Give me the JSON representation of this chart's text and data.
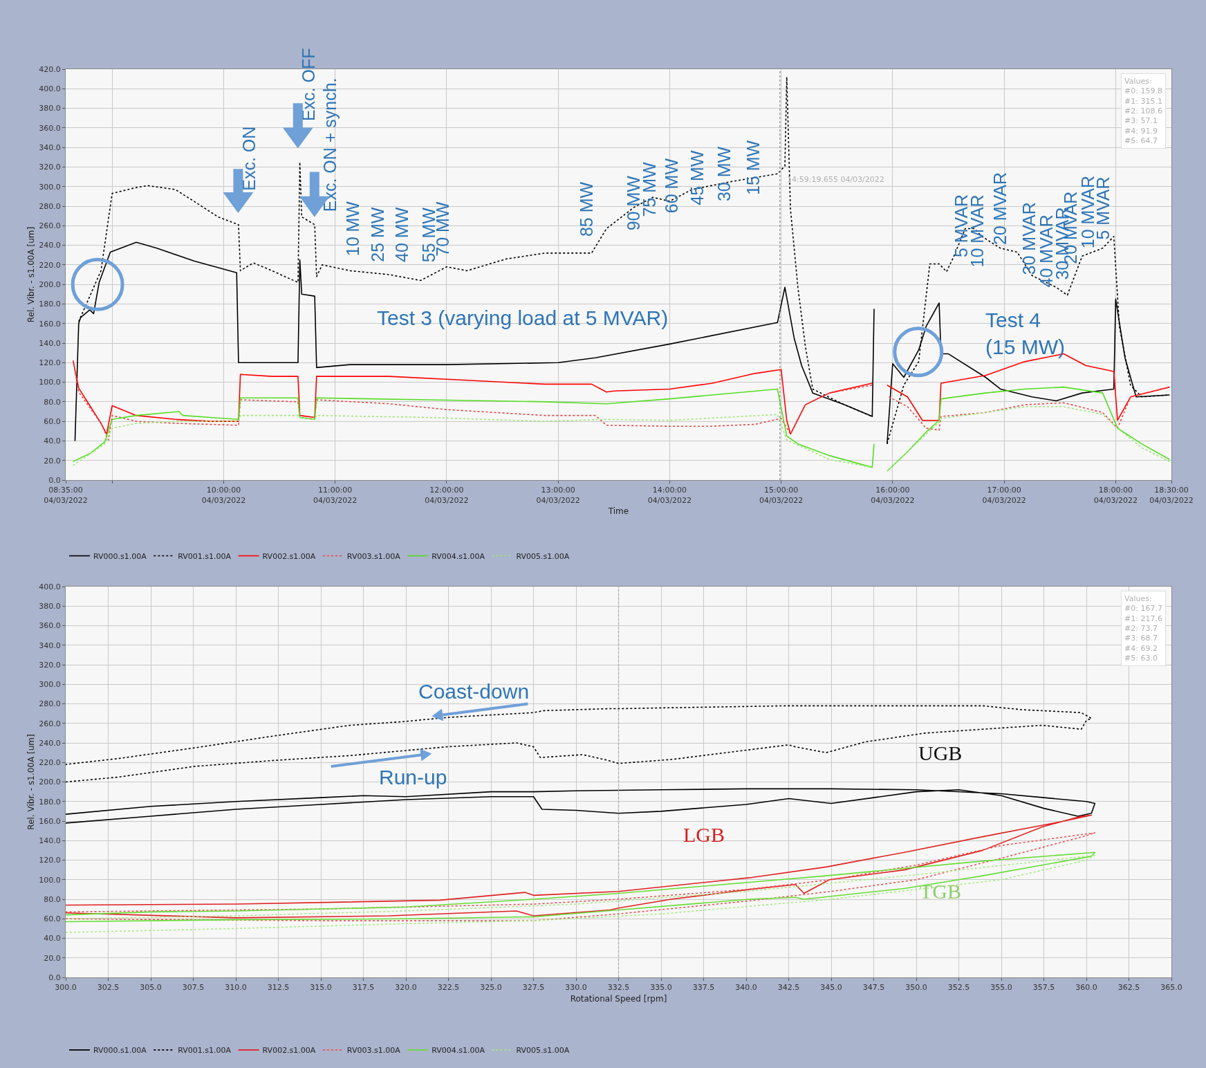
{
  "chart_data": [
    {
      "type": "line",
      "xlabel": "Time",
      "ylabel": "Rel. Vibr. - s1.00A [um]",
      "xlim": [
        "2022-03-04T08:35",
        "2022-03-04T18:30"
      ],
      "xticks": [
        {
          "value": "2022-03-04T08:35",
          "label": "08:35:00\n04/03/2022"
        },
        {
          "value": "2022-03-04T09:00",
          "label": null
        },
        {
          "value": "2022-03-04T10:00",
          "label": "10:00:00\n04/03/2022"
        },
        {
          "value": "2022-03-04T11:00",
          "label": "11:00:00\n04/03/2022"
        },
        {
          "value": "2022-03-04T12:00",
          "label": "12:00:00\n04/03/2022"
        },
        {
          "value": "2022-03-04T13:00",
          "label": "13:00:00\n04/03/2022"
        },
        {
          "value": "2022-03-04T14:00",
          "label": "14:00:00\n04/03/2022"
        },
        {
          "value": "2022-03-04T15:00",
          "label": "15:00:00\n04/03/2022"
        },
        {
          "value": "2022-03-04T16:00",
          "label": "16:00:00\n04/03/2022"
        },
        {
          "value": "2022-03-04T17:00",
          "label": "17:00:00\n04/03/2022"
        },
        {
          "value": "2022-03-04T18:00",
          "label": "18:00:00\n04/03/2022"
        },
        {
          "value": "2022-03-04T18:30",
          "label": "18:30:00\n04/03/2022"
        }
      ],
      "ylim": [
        0,
        420
      ],
      "yticks": [
        {
          "value": 0,
          "label": "0.0"
        },
        {
          "value": 20,
          "label": "20.0"
        },
        {
          "value": 40,
          "label": "40.0"
        },
        {
          "value": 60,
          "label": "60.0"
        },
        {
          "value": 80,
          "label": "80.0"
        },
        {
          "value": 100,
          "label": "100.0"
        },
        {
          "value": 120,
          "label": "120.0"
        },
        {
          "value": 140,
          "label": "140.0"
        },
        {
          "value": 160,
          "label": "160.0"
        },
        {
          "value": 180,
          "label": "180.0"
        },
        {
          "value": 200,
          "label": "200.0"
        },
        {
          "value": 220,
          "label": "220.0"
        },
        {
          "value": 240,
          "label": "240.0"
        },
        {
          "value": 260,
          "label": "260.0"
        },
        {
          "value": 280,
          "label": "280.0"
        },
        {
          "value": 300,
          "label": "300.0"
        },
        {
          "value": 320,
          "label": "320.0"
        },
        {
          "value": 340,
          "label": "340.0"
        },
        {
          "value": 360,
          "label": "360.0"
        },
        {
          "value": 380,
          "label": "380.0"
        },
        {
          "value": 400,
          "label": "400.0"
        },
        {
          "value": 420,
          "label": "420.0"
        }
      ],
      "grid": true,
      "legend": "bottom",
      "ref_lines": [
        {
          "axis": "x",
          "value": "2022-03-04T14:59:19",
          "label": "14:59:19.655 04/03/2022",
          "color": "#888888",
          "line_style": "dotted"
        }
      ],
      "series": [
        {
          "name": "RV000.s1.00A",
          "color": "#000000",
          "line_style": "solid",
          "x": [
            "2022-03-04T08:40",
            "2022-03-04T08:42",
            "2022-03-04T08:43",
            "2022-03-04T08:48",
            "2022-03-04T08:50",
            "2022-03-04T08:53",
            "2022-03-04T08:59",
            "2022-03-04T09:13",
            "2022-03-04T09:24",
            "2022-03-04T09:44",
            "2022-03-04T10:07",
            "2022-03-04T10:08",
            "2022-03-04T10:40",
            "2022-03-04T10:41",
            "2022-03-04T10:42",
            "2022-03-04T10:49",
            "2022-03-04T10:50",
            "2022-03-04T11:08",
            "2022-03-04T12:00",
            "2022-03-04T13:00",
            "2022-03-04T13:20",
            "2022-03-04T14:00",
            "2022-03-04T14:58",
            "2022-03-04T15:02",
            "2022-03-04T15:07",
            "2022-03-04T15:11",
            "2022-03-04T15:17",
            "2022-03-04T15:34",
            "2022-03-04T15:49",
            "2022-03-04T15:50",
            "2022-03-04T15:53",
            "2022-03-04T15:57",
            "2022-03-04T16:00",
            "2022-03-04T16:06",
            "2022-03-04T16:14",
            "2022-03-04T16:18",
            "2022-03-04T16:25",
            "2022-03-04T16:26",
            "2022-03-04T16:30",
            "2022-03-04T16:50",
            "2022-03-04T16:58",
            "2022-03-04T17:15",
            "2022-03-04T17:28",
            "2022-03-04T17:42",
            "2022-03-04T17:59",
            "2022-03-04T18:00",
            "2022-03-04T18:05",
            "2022-03-04T18:11",
            "2022-03-04T18:29"
          ],
          "values": [
            40,
            160,
            166,
            174,
            170,
            202,
            233,
            243,
            237,
            224,
            212,
            120,
            120,
            225,
            190,
            188,
            115,
            118,
            118,
            120,
            125,
            139,
            161,
            197,
            145,
            117,
            89,
            77,
            65,
            175,
            null,
            37,
            119,
            105,
            133,
            157,
            181,
            129,
            129,
            105,
            93,
            85,
            81,
            89,
            93,
            185,
            125,
            85,
            87
          ]
        },
        {
          "name": "RV001.s1.00A",
          "color": "#000000",
          "line_style": "dotted",
          "x": [
            "2022-03-04T08:42",
            "2022-03-04T08:54",
            "2022-03-04T09:00",
            "2022-03-04T09:13",
            "2022-03-04T09:19",
            "2022-03-04T09:34",
            "2022-03-04T09:44",
            "2022-03-04T09:57",
            "2022-03-04T10:08",
            "2022-03-04T10:09",
            "2022-03-04T10:16",
            "2022-03-04T10:26",
            "2022-03-04T10:40",
            "2022-03-04T10:41",
            "2022-03-04T10:42",
            "2022-03-04T10:49",
            "2022-03-04T10:50",
            "2022-03-04T10:53",
            "2022-03-04T11:08",
            "2022-03-04T11:29",
            "2022-03-04T11:46",
            "2022-03-04T12:00",
            "2022-03-04T12:11",
            "2022-03-04T12:32",
            "2022-03-04T12:53",
            "2022-03-04T13:18",
            "2022-03-04T13:26",
            "2022-03-04T13:41",
            "2022-03-04T13:51",
            "2022-03-04T14:00",
            "2022-03-04T14:12",
            "2022-03-04T14:33",
            "2022-03-04T14:58",
            "2022-03-04T15:02",
            "2022-03-04T15:03",
            "2022-03-04T15:05",
            "2022-03-04T15:09",
            "2022-03-04T15:13",
            "2022-03-04T15:17",
            "2022-03-04T15:34",
            "2022-03-04T15:49",
            "2022-03-04T15:53",
            "2022-03-04T15:57",
            "2022-03-04T16:06",
            "2022-03-04T16:14",
            "2022-03-04T16:20",
            "2022-03-04T16:25",
            "2022-03-04T16:29",
            "2022-03-04T16:33",
            "2022-03-04T16:39",
            "2022-03-04T16:44",
            "2022-03-04T16:48",
            "2022-03-04T16:58",
            "2022-03-04T17:07",
            "2022-03-04T17:15",
            "2022-03-04T17:28",
            "2022-03-04T17:34",
            "2022-03-04T17:42",
            "2022-03-04T17:53",
            "2022-03-04T17:59",
            "2022-03-04T18:02",
            "2022-03-04T18:08",
            "2022-03-04T18:14",
            "2022-03-04T18:29"
          ],
          "values": [
            162,
            214,
            293,
            299,
            301,
            297,
            285,
            269,
            261,
            214,
            222,
            214,
            202,
            325,
            269,
            261,
            208,
            220,
            214,
            210,
            204,
            218,
            214,
            226,
            232,
            232,
            257,
            279,
            289,
            285,
            297,
            305,
            313,
            321,
            412,
            277,
            197,
            137,
            93,
            77,
            65,
            null,
            37,
            97,
            121,
            221,
            221,
            213,
            229,
            257,
            257,
            249,
            237,
            233,
            209,
            197,
            189,
            229,
            237,
            249,
            157,
            97,
            85,
            87
          ]
        },
        {
          "name": "RV002.s1.00A",
          "color": "#ff0000",
          "line_style": "solid",
          "x": [
            "2022-03-04T08:39",
            "2022-03-04T08:42",
            "2022-03-04T08:48",
            "2022-03-04T08:54",
            "2022-03-04T08:57",
            "2022-03-04T09:00",
            "2022-03-04T09:13",
            "2022-03-04T09:34",
            "2022-03-04T09:53",
            "2022-03-04T10:08",
            "2022-03-04T10:09",
            "2022-03-04T10:26",
            "2022-03-04T10:40",
            "2022-03-04T10:41",
            "2022-03-04T10:49",
            "2022-03-04T10:50",
            "2022-03-04T11:29",
            "2022-03-04T12:11",
            "2022-03-04T12:53",
            "2022-03-04T13:18",
            "2022-03-04T13:26",
            "2022-03-04T13:30",
            "2022-03-04T14:00",
            "2022-03-04T14:23",
            "2022-03-04T14:46",
            "2022-03-04T15:00",
            "2022-03-04T15:03",
            "2022-03-04T15:05",
            "2022-03-04T15:13",
            "2022-03-04T15:26",
            "2022-03-04T15:49",
            "2022-03-04T15:53",
            "2022-03-04T15:57",
            "2022-03-04T16:08",
            "2022-03-04T16:16",
            "2022-03-04T16:25",
            "2022-03-04T16:26",
            "2022-03-04T16:50",
            "2022-03-04T17:11",
            "2022-03-04T17:32",
            "2022-03-04T17:44",
            "2022-03-04T17:59",
            "2022-03-04T18:01",
            "2022-03-04T18:08",
            "2022-03-04T18:29"
          ],
          "values": [
            122,
            94,
            76,
            58,
            47,
            76,
            66,
            62,
            60,
            60,
            108,
            106,
            106,
            66,
            64,
            106,
            106,
            102,
            98,
            98,
            90,
            91,
            93,
            99,
            109,
            113,
            61,
            47,
            77,
            89,
            99,
            null,
            97,
            85,
            61,
            61,
            99,
            107,
            121,
            129,
            117,
            111,
            61,
            85,
            95
          ]
        },
        {
          "name": "RV003.s1.00A",
          "color": "#f04040",
          "line_style": "dotted",
          "x": [
            "2022-03-04T08:39",
            "2022-03-04T08:42",
            "2022-03-04T08:54",
            "2022-03-04T08:58",
            "2022-03-04T09:00",
            "2022-03-04T09:13",
            "2022-03-04T09:34",
            "2022-03-04T10:08",
            "2022-03-04T10:09",
            "2022-03-04T10:40",
            "2022-03-04T10:41",
            "2022-03-04T10:49",
            "2022-03-04T10:50",
            "2022-03-04T11:29",
            "2022-03-04T12:00",
            "2022-03-04T12:53",
            "2022-03-04T13:20",
            "2022-03-04T13:26",
            "2022-03-04T14:00",
            "2022-03-04T14:23",
            "2022-03-04T14:46",
            "2022-03-04T15:00",
            "2022-03-04T15:05",
            "2022-03-04T15:13",
            "2022-03-04T15:26",
            "2022-03-04T15:49",
            "2022-03-04T15:53",
            "2022-03-04T15:58",
            "2022-03-04T16:08",
            "2022-03-04T16:18",
            "2022-03-04T16:25",
            "2022-03-04T16:26",
            "2022-03-04T16:50",
            "2022-03-04T17:11",
            "2022-03-04T17:32",
            "2022-03-04T17:53",
            "2022-03-04T18:01",
            "2022-03-04T18:08",
            "2022-03-04T18:29"
          ],
          "values": [
            122,
            90,
            58,
            41,
            66,
            60,
            58,
            56,
            82,
            80,
            64,
            62,
            82,
            78,
            72,
            66,
            66,
            56,
            55,
            55,
            57,
            63,
            47,
            77,
            89,
            97,
            null,
            85,
            75,
            53,
            51,
            65,
            69,
            77,
            79,
            69,
            53,
            85,
            95
          ]
        },
        {
          "name": "RV004.s1.00A",
          "color": "#55dd22",
          "line_style": "solid",
          "x": [
            "2022-03-04T08:39",
            "2022-03-04T08:48",
            "2022-03-04T08:56",
            "2022-03-04T09:00",
            "2022-03-04T09:13",
            "2022-03-04T09:36",
            "2022-03-04T09:38",
            "2022-03-04T09:53",
            "2022-03-04T10:08",
            "2022-03-04T10:09",
            "2022-03-04T10:40",
            "2022-03-04T10:41",
            "2022-03-04T10:49",
            "2022-03-04T10:50",
            "2022-03-04T11:50",
            "2022-03-04T12:53",
            "2022-03-04T13:26",
            "2022-03-04T14:00",
            "2022-03-04T14:58",
            "2022-03-04T15:03",
            "2022-03-04T15:09",
            "2022-03-04T15:26",
            "2022-03-04T15:49",
            "2022-03-04T15:50",
            "2022-03-04T15:53",
            "2022-03-04T15:57",
            "2022-03-04T16:08",
            "2022-03-04T16:18",
            "2022-03-04T16:25",
            "2022-03-04T16:26",
            "2022-03-04T16:50",
            "2022-03-04T17:11",
            "2022-03-04T17:32",
            "2022-03-04T17:53",
            "2022-03-04T18:01",
            "2022-03-04T18:14",
            "2022-03-04T18:29"
          ],
          "values": [
            19,
            27,
            39,
            62,
            66,
            70,
            66,
            64,
            62,
            84,
            84,
            64,
            62,
            84,
            82,
            80,
            78,
            83,
            93,
            45,
            37,
            25,
            13,
            37,
            null,
            9,
            29,
            49,
            61,
            83,
            89,
            93,
            95,
            89,
            53,
            37,
            21
          ]
        },
        {
          "name": "RV005.s1.00A",
          "color": "#99e870",
          "line_style": "dotted",
          "x": [
            "2022-03-04T08:39",
            "2022-03-04T08:56",
            "2022-03-04T09:00",
            "2022-03-04T09:13",
            "2022-03-04T09:34",
            "2022-03-04T10:08",
            "2022-03-04T10:09",
            "2022-03-04T10:40",
            "2022-03-04T10:41",
            "2022-03-04T10:49",
            "2022-03-04T10:50",
            "2022-03-04T11:50",
            "2022-03-04T12:53",
            "2022-03-04T13:26",
            "2022-03-04T14:00",
            "2022-03-04T14:58",
            "2022-03-04T15:03",
            "2022-03-04T15:26",
            "2022-03-04T15:49",
            "2022-03-04T15:53",
            "2022-03-04T15:57",
            "2022-03-04T16:18",
            "2022-03-04T16:25",
            "2022-03-04T16:26",
            "2022-03-04T16:50",
            "2022-03-04T17:11",
            "2022-03-04T17:32",
            "2022-03-04T17:53",
            "2022-03-04T18:01",
            "2022-03-04T18:14",
            "2022-03-04T18:29"
          ],
          "values": [
            15,
            37,
            53,
            58,
            60,
            60,
            66,
            66,
            64,
            62,
            66,
            64,
            60,
            62,
            61,
            67,
            41,
            21,
            13,
            null,
            9,
            47,
            59,
            63,
            69,
            75,
            75,
            67,
            53,
            33,
            19
          ]
        }
      ],
      "annotations": [
        "Exc. ON",
        "Exc. OFF",
        "Exc. ON + synch.",
        "10 MW",
        "25 MW",
        "40 MW",
        "55 MW",
        "70 MW",
        "85 MW",
        "90 MW",
        "75 MW",
        "60 MW",
        "45 MW",
        "30 MW",
        "15 MW",
        "5 MVAR",
        "10 MVAR",
        "20 MVAR",
        "30 MVAR",
        "40 MVAR",
        "30 MVAR",
        "20 MVAR",
        "10 MVAR",
        "5 MVAR",
        "Test 3 (varying load at 5 MVAR)",
        "Test 4\n(15 MW)",
        "Values:\n#0: 159.8\n#1: 315.1\n#2: 108.6\n#3: 57.1\n#4: 91.9\n#5: 64.7"
      ]
    },
    {
      "type": "line",
      "xlabel": "Rotational Speed [rpm]",
      "ylabel": "Rel. Vibr. - s1.00A [um]",
      "xlim": [
        300,
        365
      ],
      "xticks": [
        {
          "value": 300,
          "label": "300.0"
        },
        {
          "value": 302.5,
          "label": "302.5"
        },
        {
          "value": 305,
          "label": "305.0"
        },
        {
          "value": 307.5,
          "label": "307.5"
        },
        {
          "value": 310,
          "label": "310.0"
        },
        {
          "value": 312.5,
          "label": "312.5"
        },
        {
          "value": 315,
          "label": "315.0"
        },
        {
          "value": 317.5,
          "label": "317.5"
        },
        {
          "value": 320,
          "label": "320.0"
        },
        {
          "value": 322.5,
          "label": "322.5"
        },
        {
          "value": 325,
          "label": "325.0"
        },
        {
          "value": 327.5,
          "label": "327.5"
        },
        {
          "value": 330,
          "label": "330.0"
        },
        {
          "value": 332.5,
          "label": "332.5"
        },
        {
          "value": 335,
          "label": "335.0"
        },
        {
          "value": 337.5,
          "label": "337.5"
        },
        {
          "value": 340,
          "label": "340.0"
        },
        {
          "value": 342.5,
          "label": "342.5"
        },
        {
          "value": 345,
          "label": "345.0"
        },
        {
          "value": 347.5,
          "label": "347.5"
        },
        {
          "value": 350,
          "label": "350.0"
        },
        {
          "value": 352.5,
          "label": "352.5"
        },
        {
          "value": 355,
          "label": "355.0"
        },
        {
          "value": 357.5,
          "label": "357.5"
        },
        {
          "value": 360,
          "label": "360.0"
        },
        {
          "value": 362.5,
          "label": "362.5"
        },
        {
          "value": 365,
          "label": "365.0"
        }
      ],
      "ylim": [
        0,
        400
      ],
      "yticks": [
        {
          "value": 0,
          "label": "0.0"
        },
        {
          "value": 20,
          "label": "20.0"
        },
        {
          "value": 40,
          "label": "40.0"
        },
        {
          "value": 60,
          "label": "60.0"
        },
        {
          "value": 80,
          "label": "80.0"
        },
        {
          "value": 100,
          "label": "100.0"
        },
        {
          "value": 120,
          "label": "120.0"
        },
        {
          "value": 140,
          "label": "140.0"
        },
        {
          "value": 160,
          "label": "160.0"
        },
        {
          "value": 180,
          "label": "180.0"
        },
        {
          "value": 200,
          "label": "200.0"
        },
        {
          "value": 220,
          "label": "220.0"
        },
        {
          "value": 240,
          "label": "240.0"
        },
        {
          "value": 260,
          "label": "260.0"
        },
        {
          "value": 280,
          "label": "280.0"
        },
        {
          "value": 300,
          "label": "300.0"
        },
        {
          "value": 320,
          "label": "320.0"
        },
        {
          "value": 340,
          "label": "340.0"
        },
        {
          "value": 360,
          "label": "360.0"
        },
        {
          "value": 380,
          "label": "380.0"
        },
        {
          "value": 400,
          "label": "400.0"
        }
      ],
      "grid": true,
      "legend": "bottom",
      "ref_lines": [
        {
          "axis": "x",
          "value": 332.5,
          "color": "#aaaaaa",
          "line_style": "dotted"
        }
      ],
      "series": [
        {
          "name": "RV000.s1.00A",
          "color": "#000000",
          "line_style": "solid",
          "x": [
            300,
            305,
            310,
            315,
            320,
            325,
            327.5,
            328,
            330,
            332.5,
            335,
            340,
            342.5,
            345,
            347.5,
            350,
            352.5,
            355,
            357.5,
            359.5,
            360.3,
            360.5,
            360,
            357.5,
            355,
            350,
            345,
            340,
            335,
            330,
            327.5,
            325,
            320,
            317.5,
            315,
            310,
            305,
            300
          ],
          "values": [
            158,
            165,
            172,
            177,
            182,
            185,
            185,
            172,
            171,
            168,
            170,
            177,
            183,
            178,
            184,
            190,
            192,
            186,
            173,
            165,
            168,
            178,
            180,
            184,
            188,
            192,
            193,
            193,
            192,
            191,
            190,
            190,
            185,
            186,
            184,
            180,
            175,
            167
          ]
        },
        {
          "name": "RV001.s1.00A",
          "color": "#000000",
          "line_style": "dotted",
          "x": [
            300,
            303.1,
            307.6,
            312.2,
            316.7,
            322.4,
            326.5,
            327.5,
            327.9,
            330.4,
            331.9,
            332.5,
            335.6,
            340.2,
            342.5,
            342.9,
            344.7,
            347,
            350.5,
            353.9,
            357.4,
            359.7,
            360,
            360.3,
            359.7,
            356.2,
            353.9,
            349.3,
            342.5,
            335.6,
            332.5,
            331.9,
            328.1,
            327.5,
            322.4,
            320,
            316.7,
            312.2,
            307.6,
            303.1,
            300
          ],
          "values": [
            200,
            205,
            216,
            222,
            227,
            236,
            240,
            236,
            225,
            228,
            222,
            219,
            223,
            233,
            238,
            236,
            230,
            241,
            250,
            254,
            258,
            254,
            263,
            265,
            271,
            274,
            278,
            278,
            278,
            276,
            275,
            275,
            273,
            271,
            266,
            262,
            258,
            247,
            235,
            224,
            218
          ]
        },
        {
          "name": "RV002.s1.00A",
          "color": "#e02020",
          "line_style": "solid",
          "x": [
            300,
            310,
            319,
            326.5,
            327.5,
            332,
            332.5,
            335.6,
            340.2,
            342.9,
            343.4,
            344.9,
            349.3,
            353.9,
            357.4,
            359.7,
            360.3,
            358.4,
            353.9,
            349.3,
            344.7,
            340.2,
            332.5,
            327.5,
            327,
            322,
            310,
            300
          ],
          "values": [
            66,
            61,
            63,
            68,
            63,
            69,
            71,
            80,
            90,
            95,
            86,
            100,
            110,
            130,
            154,
            165,
            166,
            159,
            144,
            128,
            113,
            102,
            88,
            84,
            87,
            79,
            75,
            74
          ]
        },
        {
          "name": "RV003.s1.00A",
          "color": "#f05050",
          "line_style": "dotted",
          "x": [
            300,
            315,
            327.5,
            332.5,
            340,
            345,
            350,
            355,
            360,
            360.5,
            355,
            350,
            345,
            340,
            332.5,
            327.5,
            315,
            300
          ],
          "values": [
            60,
            58,
            58,
            65,
            78,
            88,
            100,
            122,
            145,
            148,
            135,
            115,
            100,
            90,
            80,
            75,
            70,
            67
          ]
        },
        {
          "name": "RV004.s1.00A",
          "color": "#66dd33",
          "line_style": "solid",
          "x": [
            300,
            310,
            320,
            327.5,
            332.5,
            340.2,
            342.9,
            343.4,
            349.3,
            353.9,
            360.3,
            360.5,
            353.9,
            344.7,
            332.5,
            327.5,
            320,
            310,
            305,
            300
          ],
          "values": [
            57,
            59,
            60,
            62,
            69,
            80,
            82,
            80,
            91,
            104,
            124,
            128,
            119,
            104,
            86,
            80,
            72,
            68,
            67,
            64
          ]
        },
        {
          "name": "RV005.s1.00A",
          "color": "#a6ec80",
          "line_style": "dotted",
          "x": [
            300,
            310,
            320,
            327.5,
            335,
            345,
            355,
            360,
            360.5,
            350,
            340,
            330,
            320,
            310,
            300
          ],
          "values": [
            46,
            50,
            55,
            58,
            65,
            80,
            100,
            120,
            125,
            105,
            88,
            75,
            68,
            63,
            60
          ]
        }
      ],
      "annotations": [
        "Coast-down",
        "Run-up",
        "UGB",
        "LGB",
        "TGB",
        "Values:\n#0: 167.7\n#1: 217.6\n#2: 73.7\n#3: 68.7\n#4: 69.2\n#5: 63.0"
      ]
    }
  ]
}
